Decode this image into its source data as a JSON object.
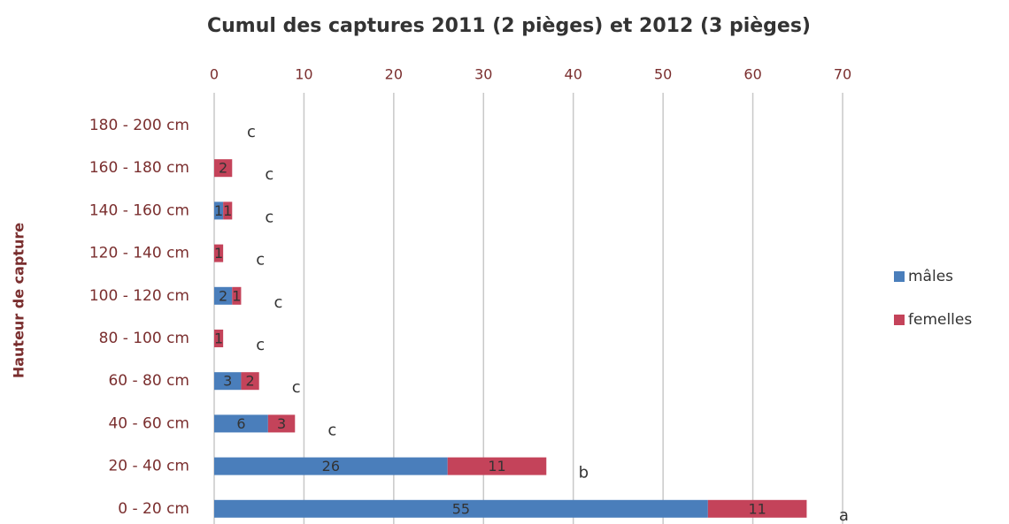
{
  "chart_data": {
    "type": "bar",
    "orientation": "horizontal",
    "stacked": true,
    "title": "Cumul des captures 2011 (2 pièges) et 2012 (3 pièges)",
    "y_label": "Hauteur de capture",
    "categories": [
      "180 - 200  cm",
      "160 - 180 cm",
      "140 - 160 cm",
      "120 - 140 cm",
      "100 - 120 cm",
      "80 - 100 cm",
      "60 - 80 cm",
      "40 - 60 cm",
      "20 - 40 cm",
      "0 - 20 cm"
    ],
    "series": [
      {
        "name": "mâles",
        "color": "#4a7ebb",
        "values": [
          0,
          0,
          1,
          0,
          2,
          0,
          3,
          6,
          26,
          55
        ]
      },
      {
        "name": "femelles",
        "color": "#c4435a",
        "values": [
          0,
          2,
          1,
          1,
          1,
          1,
          2,
          3,
          11,
          11
        ]
      }
    ],
    "annotations": [
      "c",
      "c",
      "c",
      "c",
      "c",
      "c",
      "c",
      "c",
      "b",
      "a"
    ],
    "xlim": [
      0,
      70
    ],
    "xticks": [
      0,
      10,
      20,
      30,
      40,
      50,
      60,
      70
    ],
    "grid": true,
    "legend": "right"
  }
}
